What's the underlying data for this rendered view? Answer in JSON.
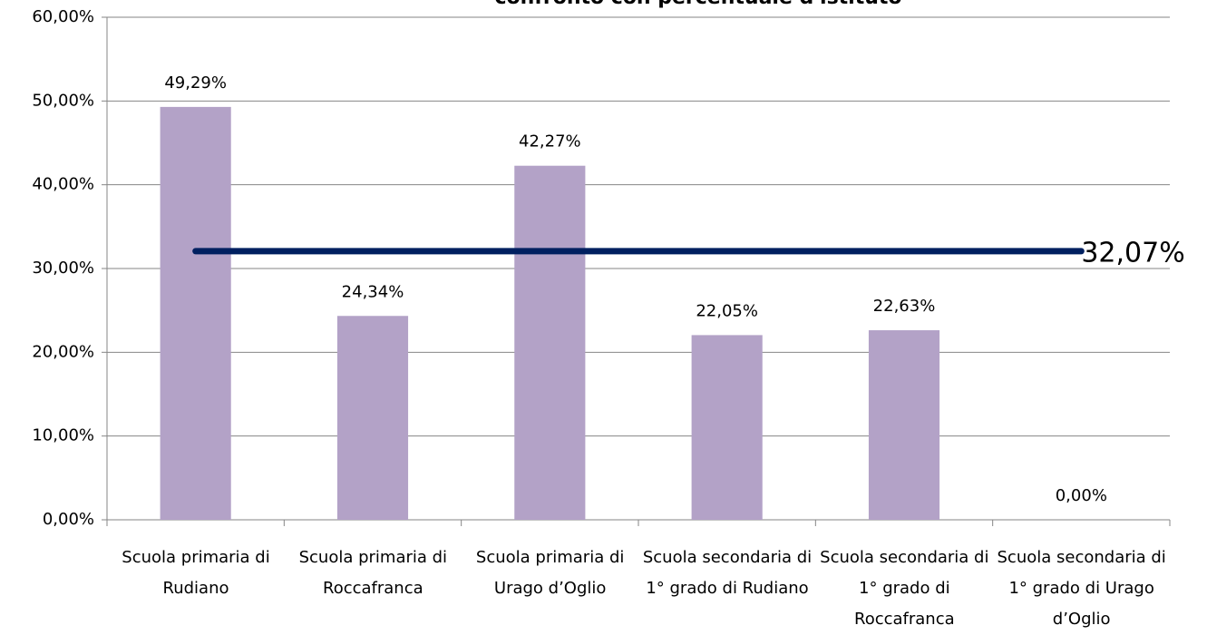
{
  "chart_data": {
    "type": "bar",
    "title": "confronto con percentuale d'istituto",
    "categories": [
      "Scuola primaria di Rudiano",
      "Scuola primaria di Roccafranca",
      "Scuola primaria di Urago d’Oglio",
      "Scuola secondaria di 1° grado di Rudiano",
      "Scuola secondaria di 1° grado di Roccafranca",
      "Scuola secondaria di 1° grado di Urago d’Oglio"
    ],
    "values": [
      49.29,
      24.34,
      42.27,
      22.05,
      22.63,
      0
    ],
    "value_labels": [
      "49,29%",
      "24,34%",
      "42,27%",
      "22,05%",
      "22,63%",
      "0,00%"
    ],
    "color": "#b3a2c7",
    "ylim": [
      0,
      60
    ],
    "yticks": [
      {
        "value": 0,
        "label": "0,00%"
      },
      {
        "value": 10,
        "label": "10,00%"
      },
      {
        "value": 20,
        "label": "20,00%"
      },
      {
        "value": 30,
        "label": "30,00%"
      },
      {
        "value": 40,
        "label": "40,00%"
      },
      {
        "value": 50,
        "label": "50,00%"
      },
      {
        "value": 60,
        "label": "60,00%"
      }
    ],
    "grid": true,
    "reference_line": {
      "value": 32.07,
      "label": "32,07%",
      "color": "#002060"
    }
  }
}
